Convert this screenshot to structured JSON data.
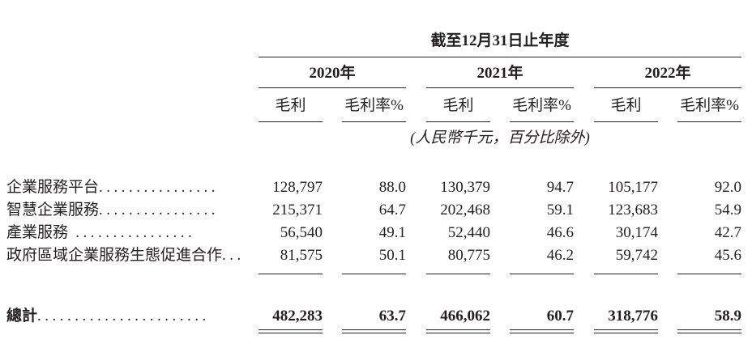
{
  "header": {
    "period": "截至12月31日止年度",
    "years": [
      "2020年",
      "2021年",
      "2022年"
    ],
    "col_gross_profit": "毛利",
    "col_margin": "毛利率%",
    "unit_note": "(人民幣千元，百分比除外)"
  },
  "rows": [
    {
      "label": "企業服務平台",
      "dots": "................",
      "values": [
        "128,797",
        "88.0",
        "130,379",
        "94.7",
        "105,177",
        "92.0"
      ]
    },
    {
      "label": "智慧企業服務",
      "dots": "................",
      "values": [
        "215,371",
        "64.7",
        "202,468",
        "59.1",
        "123,683",
        "54.9"
      ]
    },
    {
      "label": "產業服務",
      "dots": " ................",
      "values": [
        "56,540",
        "49.1",
        "52,440",
        "46.6",
        "30,174",
        "42.7"
      ]
    },
    {
      "label": "政府區域企業服務生態促進合作",
      "dots": "...",
      "values": [
        "81,575",
        "50.1",
        "80,775",
        "46.2",
        "59,742",
        "45.6"
      ]
    }
  ],
  "total": {
    "label": "總計",
    "dots": ".......................",
    "values": [
      "482,283",
      "63.7",
      "466,062",
      "60.7",
      "318,776",
      "58.9"
    ]
  }
}
